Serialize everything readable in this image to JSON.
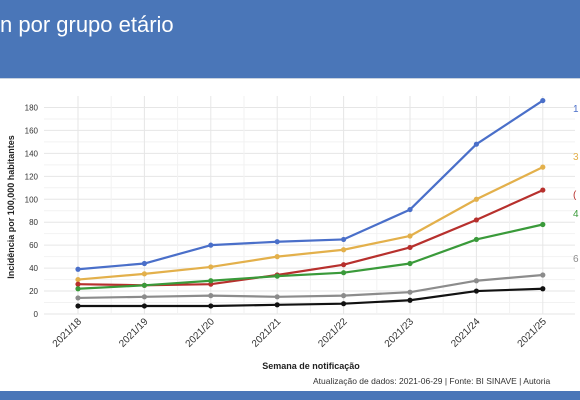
{
  "header": {
    "title": "n por grupo etário"
  },
  "source_note": "Atualização de dados: 2021-06-29 | Fonte: BI SINAVE | Autoria",
  "colors": {
    "header_bg": "#4a76b8"
  },
  "chart_data": {
    "type": "line",
    "title": "",
    "xlabel": "Semana de notificação",
    "ylabel": "Incidência por 100,000 habitantes",
    "categories": [
      "2021/18",
      "2021/19",
      "2021/20",
      "2021/21",
      "2021/22",
      "2021/23",
      "2021/24",
      "2021/25"
    ],
    "ylim": [
      0,
      190
    ],
    "yticks": [
      0,
      20,
      40,
      60,
      80,
      100,
      120,
      140,
      160,
      180
    ],
    "grid": true,
    "series": [
      {
        "label": "1",
        "color": "#4a6fc9",
        "values": [
          39,
          44,
          60,
          63,
          65,
          91,
          148,
          186
        ]
      },
      {
        "label": "3",
        "color": "#e3b04b",
        "values": [
          30,
          35,
          41,
          50,
          56,
          68,
          100,
          128
        ]
      },
      {
        "label": "(",
        "color": "#b7302d",
        "values": [
          26,
          25,
          26,
          34,
          43,
          58,
          82,
          108
        ]
      },
      {
        "label": "4",
        "color": "#3a9a3a",
        "values": [
          22,
          25,
          29,
          33,
          36,
          44,
          65,
          78
        ]
      },
      {
        "label": "6",
        "color": "#8c8c8c",
        "values": [
          14,
          15,
          16,
          15,
          16,
          19,
          29,
          34
        ]
      },
      {
        "label": "",
        "color": "#111111",
        "values": [
          7,
          7,
          7,
          8,
          9,
          12,
          20,
          22
        ]
      }
    ]
  }
}
